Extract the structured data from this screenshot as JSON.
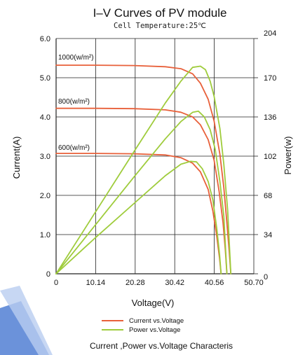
{
  "chart_data": {
    "type": "line",
    "title": "I–V Curves of PV module",
    "subtitle": "Cell Temperature:25℃",
    "xlabel": "Voltage(V)",
    "ylabel_left": "Current(A)",
    "ylabel_right": "Power(w)",
    "xlim": [
      0,
      50.7
    ],
    "ylim_left": [
      0,
      6.0
    ],
    "ylim_right": [
      0,
      204
    ],
    "x_ticks": [
      "0",
      "10.14",
      "20.28",
      "30.42",
      "40.56",
      "50.70"
    ],
    "y_left_ticks": [
      "0",
      "1.0",
      "2.0",
      "3.0",
      "4.0",
      "5.0",
      "6.0"
    ],
    "y_right_ticks": [
      "0",
      "34",
      "68",
      "102",
      "136",
      "170",
      "204"
    ],
    "grid": true,
    "legend_position": "bottom",
    "colors": {
      "current": "#e8603a",
      "power": "#9fcc3c"
    },
    "irradiance_labels": [
      "1000(w/m²)",
      "800(w/m²)",
      "600(w/m²)"
    ],
    "series": [
      {
        "name": "Current vs.Voltage",
        "irradiance": "1000(w/m²)",
        "axis": "left",
        "points": [
          [
            0,
            5.32
          ],
          [
            10,
            5.32
          ],
          [
            20,
            5.31
          ],
          [
            28,
            5.28
          ],
          [
            32,
            5.23
          ],
          [
            35,
            5.1
          ],
          [
            37,
            4.86
          ],
          [
            39,
            4.45
          ],
          [
            40.5,
            3.9
          ],
          [
            42,
            3.05
          ],
          [
            43,
            2.2
          ],
          [
            43.8,
            1.3
          ],
          [
            44.4,
            0.55
          ],
          [
            44.8,
            0
          ]
        ]
      },
      {
        "name": "Current vs.Voltage",
        "irradiance": "800(w/m²)",
        "axis": "left",
        "points": [
          [
            0,
            4.22
          ],
          [
            10,
            4.22
          ],
          [
            20,
            4.21
          ],
          [
            28,
            4.18
          ],
          [
            32,
            4.12
          ],
          [
            35,
            4.0
          ],
          [
            37,
            3.8
          ],
          [
            39,
            3.42
          ],
          [
            40.5,
            2.9
          ],
          [
            41.8,
            2.1
          ],
          [
            42.8,
            1.3
          ],
          [
            43.4,
            0.6
          ],
          [
            43.8,
            0
          ]
        ]
      },
      {
        "name": "Current vs.Voltage",
        "irradiance": "600(w/m²)",
        "axis": "left",
        "points": [
          [
            0,
            3.07
          ],
          [
            10,
            3.07
          ],
          [
            20,
            3.06
          ],
          [
            28,
            3.03
          ],
          [
            32,
            2.96
          ],
          [
            35,
            2.82
          ],
          [
            37,
            2.6
          ],
          [
            39,
            2.15
          ],
          [
            40.2,
            1.6
          ],
          [
            41.2,
            0.95
          ],
          [
            41.9,
            0.4
          ],
          [
            42.3,
            0
          ]
        ]
      },
      {
        "name": "Power vs.Voltage",
        "irradiance": "1000(w/m²)",
        "axis": "right",
        "points": [
          [
            0,
            0
          ],
          [
            10,
            53
          ],
          [
            20,
            106
          ],
          [
            28,
            148
          ],
          [
            32,
            167
          ],
          [
            35,
            179
          ],
          [
            37,
            180
          ],
          [
            38.3,
            177
          ],
          [
            39.5,
            167
          ],
          [
            40.5,
            154
          ],
          [
            42,
            126
          ],
          [
            43,
            95
          ],
          [
            44,
            55
          ],
          [
            44.8,
            0
          ]
        ]
      },
      {
        "name": "Power vs.Voltage",
        "irradiance": "800(w/m²)",
        "axis": "right",
        "points": [
          [
            0,
            0
          ],
          [
            10,
            42
          ],
          [
            20,
            84
          ],
          [
            28,
            117
          ],
          [
            32,
            132
          ],
          [
            35,
            140
          ],
          [
            36.5,
            141
          ],
          [
            38,
            136
          ],
          [
            39.5,
            125
          ],
          [
            40.8,
            108
          ],
          [
            42,
            80
          ],
          [
            43,
            50
          ],
          [
            43.8,
            0
          ]
        ]
      },
      {
        "name": "Power vs.Voltage",
        "irradiance": "600(w/m²)",
        "axis": "right",
        "points": [
          [
            0,
            0
          ],
          [
            10,
            31
          ],
          [
            20,
            61
          ],
          [
            28,
            85
          ],
          [
            32,
            95
          ],
          [
            34.5,
            97.5
          ],
          [
            36,
            97
          ],
          [
            37.5,
            91
          ],
          [
            39,
            80
          ],
          [
            40.2,
            64
          ],
          [
            41.2,
            39
          ],
          [
            41.9,
            17
          ],
          [
            42.3,
            0
          ]
        ]
      }
    ],
    "legend": [
      "Current vs.Voltage",
      "Power vs.Voltage"
    ],
    "caption": "Current ,Power vs.Voltage Characteris"
  }
}
